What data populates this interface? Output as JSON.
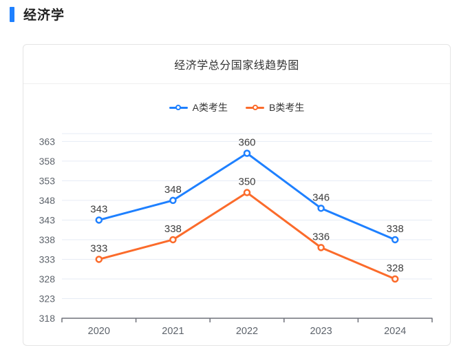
{
  "page": {
    "section_title": "经济学",
    "accent_color": "#1e80ff"
  },
  "card": {
    "title": "经济学总分国家线趋势图"
  },
  "chart_data": {
    "type": "line",
    "title": "经济学总分国家线趋势图",
    "categories": [
      "2020",
      "2021",
      "2022",
      "2023",
      "2024"
    ],
    "series": [
      {
        "name": "A类考生",
        "color": "#1e80ff",
        "values": [
          343,
          348,
          360,
          346,
          338
        ]
      },
      {
        "name": "B类考生",
        "color": "#fb6b2b",
        "values": [
          333,
          338,
          350,
          336,
          328
        ]
      }
    ],
    "xlabel": "",
    "ylabel": "",
    "ylim": [
      318,
      365
    ],
    "yticks": [
      318,
      323,
      328,
      333,
      338,
      343,
      348,
      353,
      358,
      363
    ],
    "grid": true,
    "legend_position": "top",
    "marker": "empty-circle",
    "data_labels": true
  },
  "colors": {
    "grid_line": "#e6ebf5",
    "axis_line": "#6e7079",
    "tick_label": "#5d636b",
    "data_label": "#3d3d3d",
    "legend_text": "#333333"
  }
}
